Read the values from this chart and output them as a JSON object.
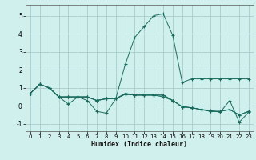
{
  "xlabel": "Humidex (Indice chaleur)",
  "background_color": "#cff0ec",
  "grid_color": "#aacccc",
  "line_color": "#1a6b5e",
  "xlim": [
    -0.5,
    23.5
  ],
  "ylim": [
    -1.4,
    5.6
  ],
  "yticks": [
    -1,
    0,
    1,
    2,
    3,
    4,
    5
  ],
  "xticks": [
    0,
    1,
    2,
    3,
    4,
    5,
    6,
    7,
    8,
    9,
    10,
    11,
    12,
    13,
    14,
    15,
    16,
    17,
    18,
    19,
    20,
    21,
    22,
    23
  ],
  "lines": [
    {
      "x": [
        0,
        1,
        2,
        3,
        4,
        5,
        6,
        7,
        8,
        9,
        10,
        11,
        12,
        13,
        14,
        15,
        16,
        17,
        18,
        19,
        20,
        21,
        22,
        23
      ],
      "y": [
        0.7,
        1.2,
        1.0,
        0.5,
        0.5,
        0.5,
        0.5,
        0.3,
        0.4,
        0.4,
        2.3,
        3.8,
        4.4,
        5.0,
        5.1,
        3.9,
        1.3,
        1.5,
        1.5,
        1.5,
        1.5,
        1.5,
        1.5,
        1.5
      ]
    },
    {
      "x": [
        0,
        1,
        2,
        3,
        4,
        5,
        6,
        7,
        8,
        9,
        10,
        11,
        12,
        13,
        14,
        15,
        16,
        17,
        18,
        19,
        20,
        21,
        22,
        23
      ],
      "y": [
        0.7,
        1.2,
        1.0,
        0.5,
        0.1,
        0.5,
        0.3,
        -0.3,
        -0.4,
        0.4,
        0.7,
        0.6,
        0.6,
        0.6,
        0.5,
        0.3,
        -0.05,
        -0.1,
        -0.2,
        -0.3,
        -0.3,
        -0.2,
        -0.5,
        -0.3
      ]
    },
    {
      "x": [
        0,
        1,
        2,
        3,
        4,
        5,
        6,
        7,
        8,
        9,
        10,
        11,
        12,
        13,
        14,
        15,
        16,
        17,
        18,
        19,
        20,
        21,
        22,
        23
      ],
      "y": [
        0.7,
        1.2,
        1.0,
        0.5,
        0.5,
        0.5,
        0.5,
        0.3,
        0.4,
        0.4,
        0.65,
        0.6,
        0.6,
        0.6,
        0.6,
        0.3,
        -0.05,
        -0.1,
        -0.2,
        -0.25,
        -0.35,
        0.3,
        -0.9,
        -0.35
      ]
    },
    {
      "x": [
        0,
        1,
        2,
        3,
        4,
        5,
        6,
        7,
        8,
        9,
        10,
        11,
        12,
        13,
        14,
        15,
        16,
        17,
        18,
        19,
        20,
        21,
        22,
        23
      ],
      "y": [
        0.7,
        1.2,
        1.0,
        0.5,
        0.5,
        0.5,
        0.5,
        0.3,
        0.4,
        0.4,
        0.65,
        0.6,
        0.6,
        0.6,
        0.6,
        0.3,
        -0.05,
        -0.1,
        -0.2,
        -0.3,
        -0.3,
        -0.2,
        -0.5,
        -0.3
      ]
    }
  ]
}
